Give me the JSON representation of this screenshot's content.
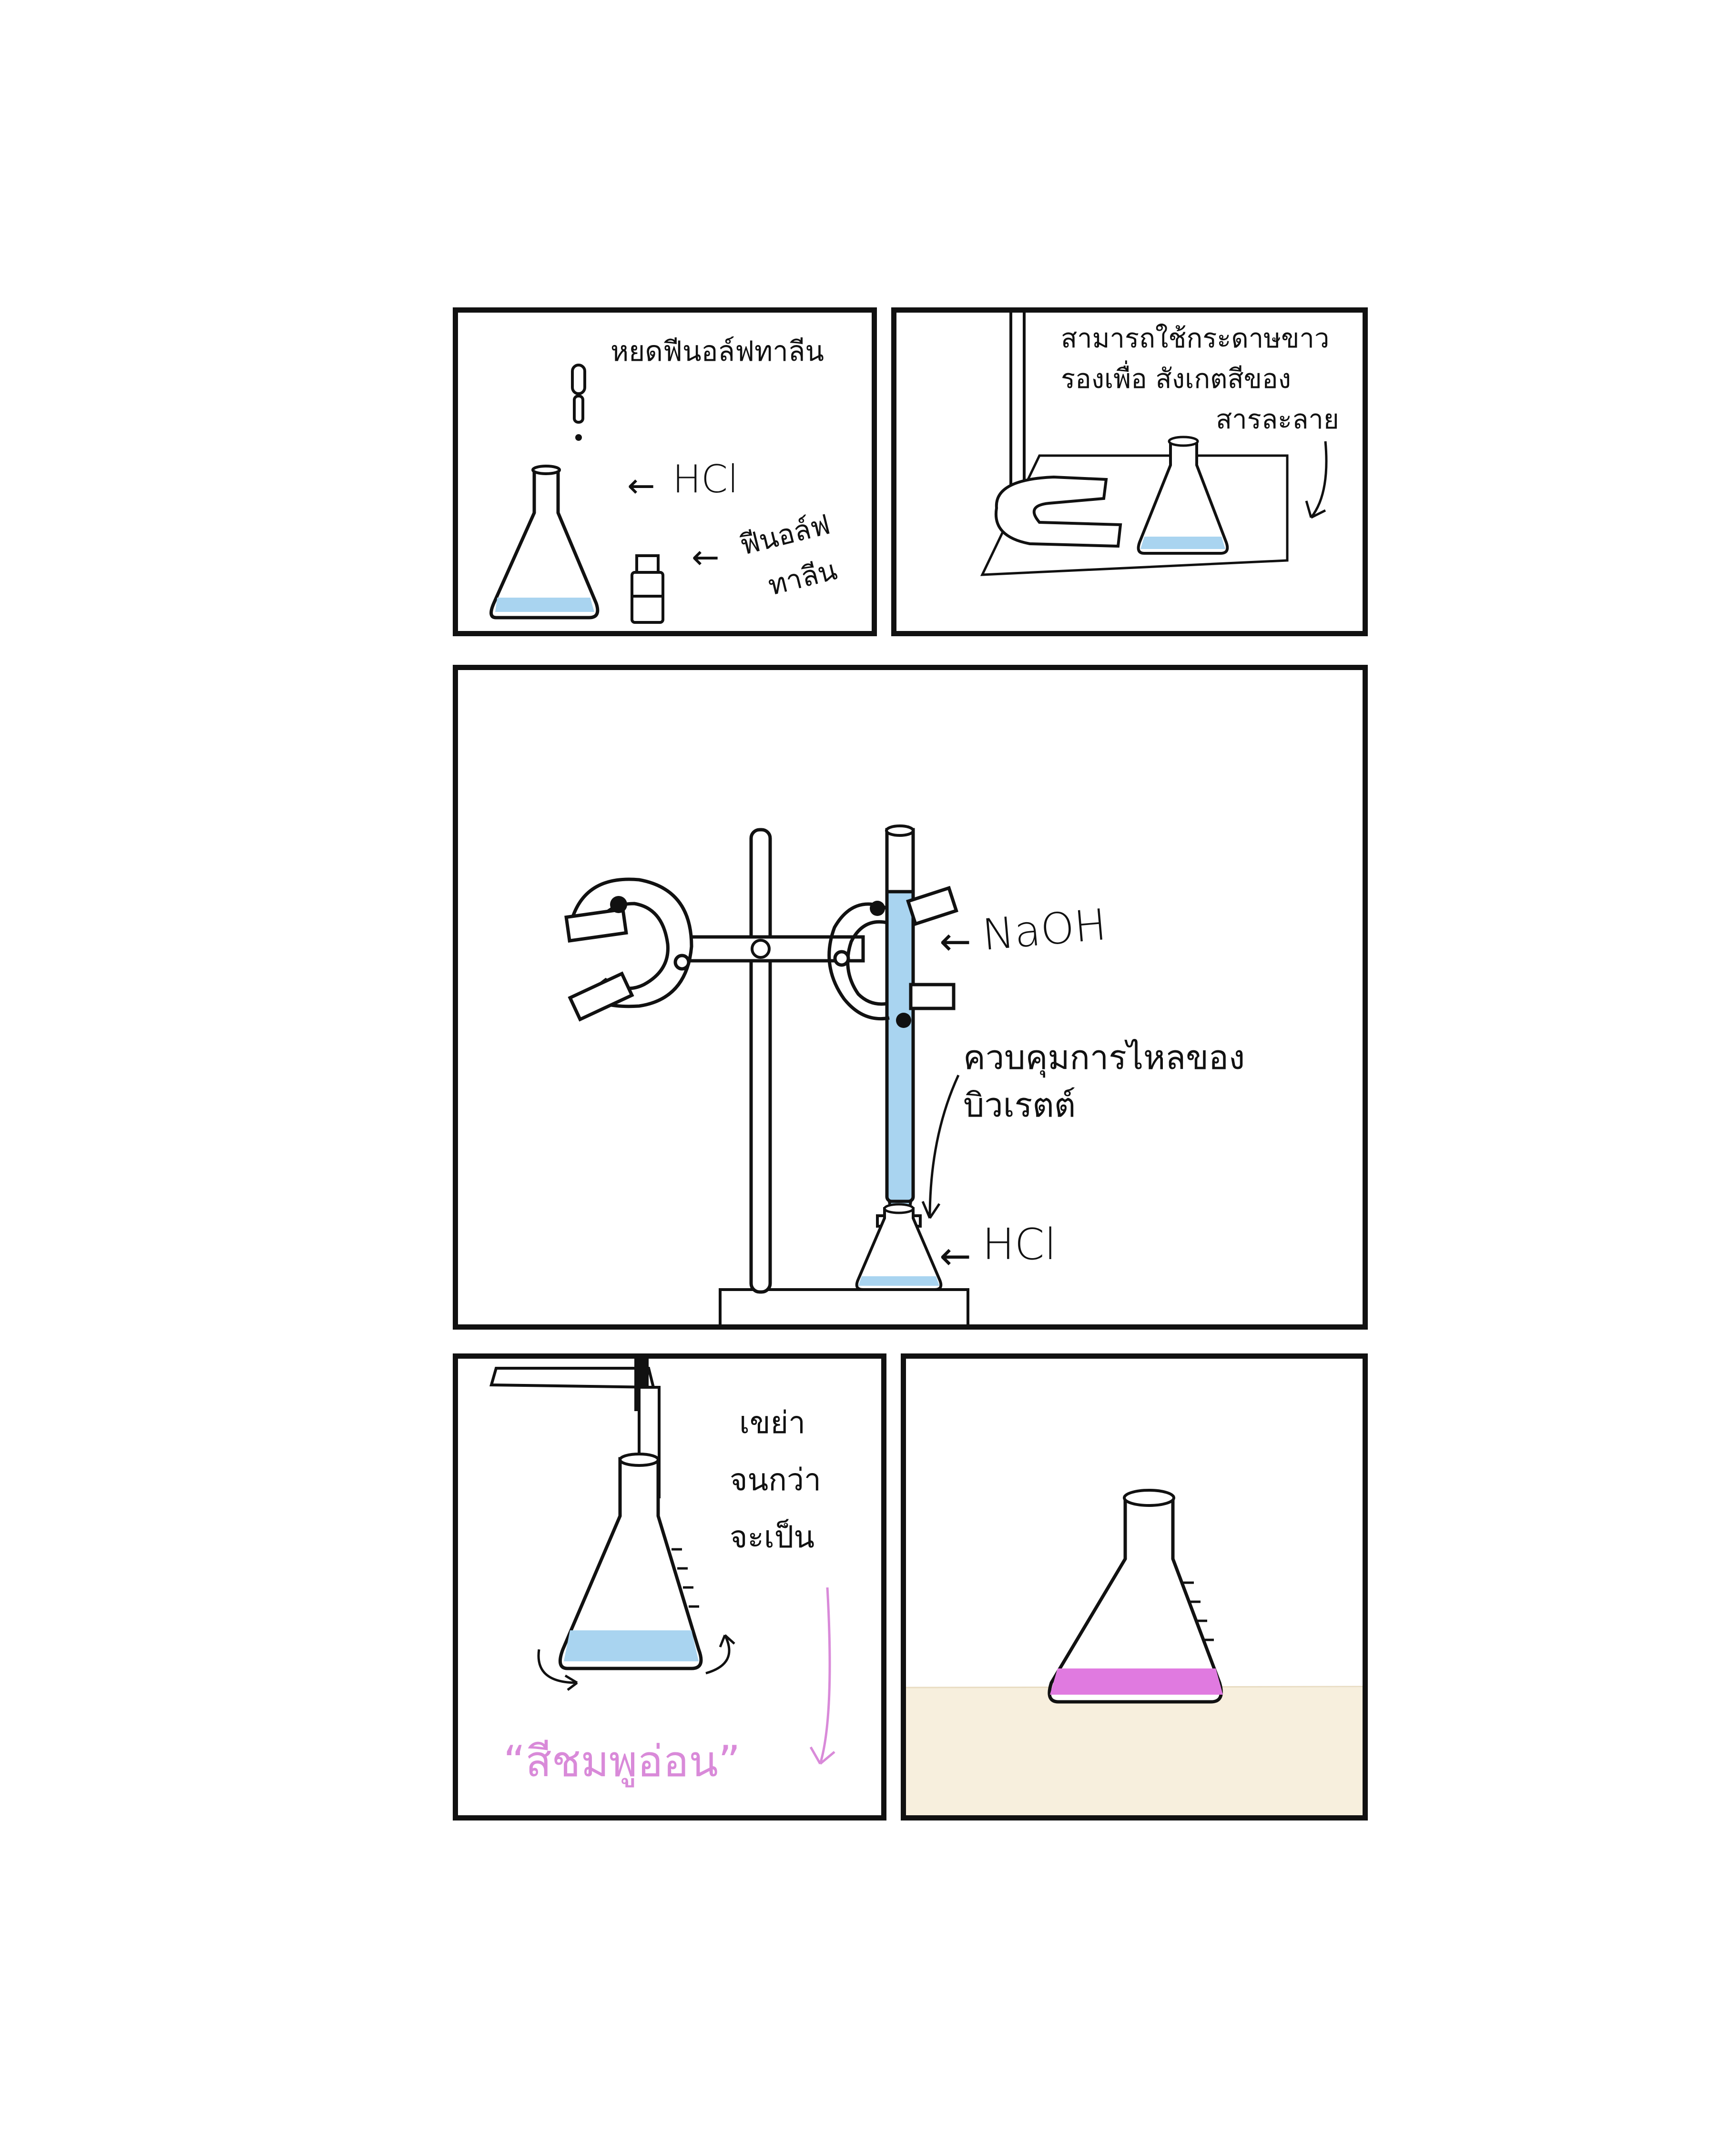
{
  "colors": {
    "ink": "#111111",
    "solution_blue": "#a9d4f0",
    "solution_pink": "#e07ae0",
    "pink_text": "#d98ad9",
    "table_beige": "#f7efdd"
  },
  "panel1": {
    "caption": "หยดฟีนอล์ฟทาลีน",
    "label_hcl": "HCl",
    "label_indicator_line1": "ฟีนอล์ฟ",
    "label_indicator_line2": "ทาลีน",
    "arrow_glyph": "←"
  },
  "panel2": {
    "caption_line1": "สามารถใช้กระดาษขาว",
    "caption_line2": "รองเพื่อ สังเกตสีของ",
    "caption_line3": "สารละลาย"
  },
  "panel3": {
    "label_naoh": "NaOH",
    "label_control_line1": "ควบคุมการไหลของ",
    "label_control_line2": "บิวเรตต์",
    "label_hcl": "HCl",
    "arrow_glyph": "←"
  },
  "panel4": {
    "caption_line1": "เขย่า",
    "caption_line2": "จนกว่า",
    "caption_line3": "จะเป็น",
    "result_text": "“สีชมพูอ่อน”"
  },
  "panel5": {}
}
